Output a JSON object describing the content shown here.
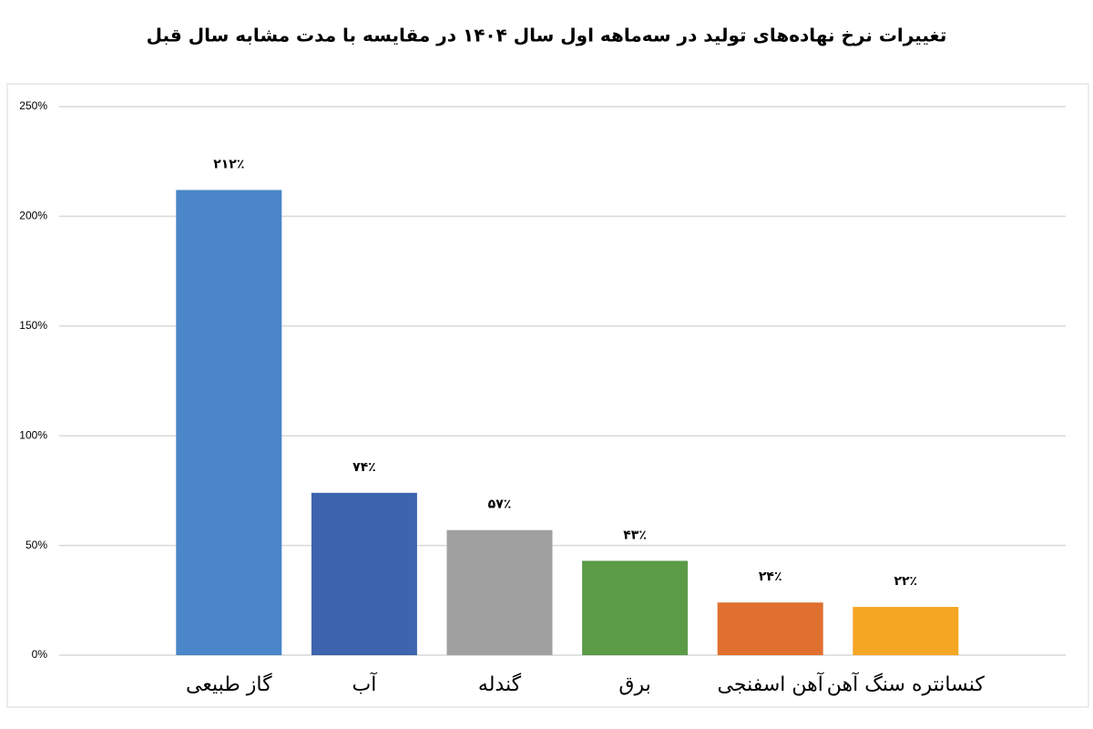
{
  "chart_data": {
    "type": "bar",
    "title": "تغییرات نرخ نهاده‌های تولید در سه‌ماهه اول سال ۱۴۰۴ در مقایسه با مدت مشابه سال قبل",
    "categories": [
      "گاز طبیعی",
      "آب",
      "گندله",
      "برق",
      "آهن اسفنجی",
      "کنسانتره سنگ آهن"
    ],
    "values": [
      212,
      74,
      57,
      43,
      24,
      22
    ],
    "value_labels": [
      "۲۱۲٪",
      "۷۴٪",
      "۵۷٪",
      "۴۳٪",
      "۲۴٪",
      "۲۲٪"
    ],
    "colors": [
      "#4a86c8",
      "#3d64ad",
      "#a0a0a0",
      "#5b9a47",
      "#e07030",
      "#f5a623"
    ],
    "ylim": [
      0,
      250
    ],
    "yticks": [
      {
        "value": 0,
        "label": "0%"
      },
      {
        "value": 50,
        "label": "50%"
      },
      {
        "value": 100,
        "label": "100%"
      },
      {
        "value": 150,
        "label": "150%"
      },
      {
        "value": 200,
        "label": "200%"
      },
      {
        "value": 250,
        "label": "250%"
      }
    ],
    "grid": true
  }
}
